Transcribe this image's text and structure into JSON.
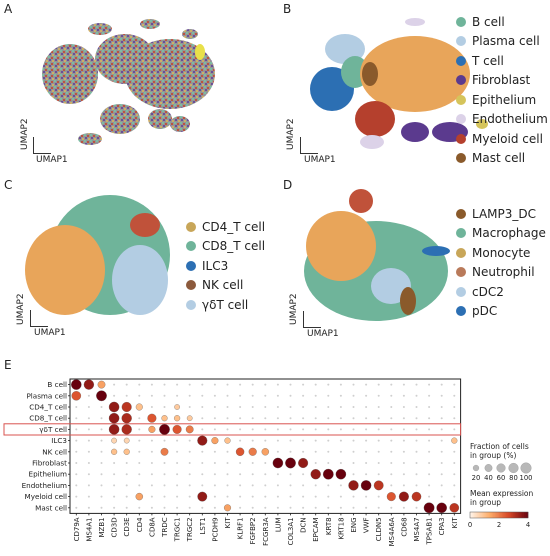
{
  "panels": {
    "A": {
      "letter": "A",
      "xlabel": "UMAP1",
      "ylabel": "UMAP2"
    },
    "B": {
      "letter": "B",
      "xlabel": "UMAP1",
      "ylabel": "UMAP2",
      "legend": [
        {
          "label": "B cell",
          "color": "#6fb49a"
        },
        {
          "label": "Plasma cell",
          "color": "#b3cde3"
        },
        {
          "label": "T cell",
          "color": "#2c6fb3"
        },
        {
          "label": "Fibroblast",
          "color": "#5b3a8e"
        },
        {
          "label": "Epithelium",
          "color": "#d5c45b"
        },
        {
          "label": "Endothelium",
          "color": "#dcd2e8"
        },
        {
          "label": "Myeloid cell",
          "color": "#b5402d"
        },
        {
          "label": "Mast cell",
          "color": "#8a5a2b"
        }
      ]
    },
    "C": {
      "letter": "C",
      "xlabel": "UMAP1",
      "ylabel": "UMAP2",
      "legend": [
        {
          "label": "CD4_T cell",
          "color": "#c8a659"
        },
        {
          "label": "CD8_T cell",
          "color": "#6fb49a"
        },
        {
          "label": "ILC3",
          "color": "#2c6fb3"
        },
        {
          "label": "NK cell",
          "color": "#8c5a3c"
        },
        {
          "label": "γδT cell",
          "color": "#b3cde3"
        }
      ]
    },
    "D": {
      "letter": "D",
      "xlabel": "UMAP1",
      "ylabel": "UMAP2",
      "legend": [
        {
          "label": "LAMP3_DC",
          "color": "#8a5a2b"
        },
        {
          "label": "Macrophage",
          "color": "#6fb49a"
        },
        {
          "label": "Monocyte",
          "color": "#c8a659"
        },
        {
          "label": "Neutrophil",
          "color": "#b97a5a"
        },
        {
          "label": "cDC2",
          "color": "#b3cde3"
        },
        {
          "label": "pDC",
          "color": "#2c6fb3"
        }
      ]
    },
    "E": {
      "letter": "E"
    }
  },
  "chart_data": {
    "type": "dotplot",
    "rows": [
      "B cell",
      "Plasma cell",
      "CD4_T cell",
      "CD8_T cell",
      "γδT cell",
      "ILC3",
      "NK cell",
      "Fibroblast",
      "Epithelium",
      "Endothelium",
      "Myeloid cell",
      "Mast cell"
    ],
    "columns": [
      "CD79A",
      "MS4A1",
      "MZB1",
      "CD3D",
      "CD3E",
      "CD4",
      "CD8A",
      "TRDC",
      "TRGC1",
      "TRGC2",
      "LST1",
      "PCDH9",
      "KIT",
      "KLRF1",
      "FGFBP2",
      "FCGR3A",
      "LUM",
      "COL3A1",
      "DCN",
      "EPCAM",
      "KRT8",
      "KRT18",
      "ENG",
      "VWF",
      "CLDN5",
      "MS4A6A",
      "CD68",
      "MS4A7",
      "TPSAB1",
      "CPA3",
      "KIT"
    ],
    "highlighted_row": "γδT cell",
    "cells": [
      {
        "r": 0,
        "c": 0,
        "f": 90,
        "e": 4
      },
      {
        "r": 0,
        "c": 1,
        "f": 85,
        "e": 3.5
      },
      {
        "r": 0,
        "c": 2,
        "f": 40,
        "e": 1.5
      },
      {
        "r": 1,
        "c": 0,
        "f": 70,
        "e": 2.5
      },
      {
        "r": 1,
        "c": 2,
        "f": 95,
        "e": 4
      },
      {
        "r": 2,
        "c": 3,
        "f": 90,
        "e": 3.5
      },
      {
        "r": 2,
        "c": 4,
        "f": 80,
        "e": 3
      },
      {
        "r": 2,
        "c": 5,
        "f": 30,
        "e": 1
      },
      {
        "r": 2,
        "c": 8,
        "f": 15,
        "e": 0.8
      },
      {
        "r": 3,
        "c": 3,
        "f": 90,
        "e": 3.5
      },
      {
        "r": 3,
        "c": 4,
        "f": 85,
        "e": 3.2
      },
      {
        "r": 3,
        "c": 6,
        "f": 60,
        "e": 2.5
      },
      {
        "r": 3,
        "c": 7,
        "f": 20,
        "e": 1
      },
      {
        "r": 3,
        "c": 8,
        "f": 20,
        "e": 1
      },
      {
        "r": 3,
        "c": 9,
        "f": 15,
        "e": 0.8
      },
      {
        "r": 4,
        "c": 3,
        "f": 90,
        "e": 3.5
      },
      {
        "r": 4,
        "c": 4,
        "f": 85,
        "e": 3.2
      },
      {
        "r": 4,
        "c": 6,
        "f": 30,
        "e": 1.5
      },
      {
        "r": 4,
        "c": 7,
        "f": 95,
        "e": 4
      },
      {
        "r": 4,
        "c": 8,
        "f": 60,
        "e": 2.5
      },
      {
        "r": 4,
        "c": 9,
        "f": 40,
        "e": 2
      },
      {
        "r": 5,
        "c": 3,
        "f": 15,
        "e": 0.6
      },
      {
        "r": 5,
        "c": 4,
        "f": 15,
        "e": 0.6
      },
      {
        "r": 5,
        "c": 10,
        "f": 80,
        "e": 3.5
      },
      {
        "r": 5,
        "c": 11,
        "f": 30,
        "e": 1.5
      },
      {
        "r": 5,
        "c": 12,
        "f": 20,
        "e": 1
      },
      {
        "r": 5,
        "c": 30,
        "f": 20,
        "e": 1
      },
      {
        "r": 6,
        "c": 3,
        "f": 20,
        "e": 1
      },
      {
        "r": 6,
        "c": 4,
        "f": 20,
        "e": 1
      },
      {
        "r": 6,
        "c": 7,
        "f": 40,
        "e": 2
      },
      {
        "r": 6,
        "c": 13,
        "f": 50,
        "e": 2.5
      },
      {
        "r": 6,
        "c": 14,
        "f": 45,
        "e": 2
      },
      {
        "r": 6,
        "c": 15,
        "f": 35,
        "e": 1.5
      },
      {
        "r": 7,
        "c": 16,
        "f": 90,
        "e": 4
      },
      {
        "r": 7,
        "c": 17,
        "f": 95,
        "e": 4
      },
      {
        "r": 7,
        "c": 18,
        "f": 80,
        "e": 3.5
      },
      {
        "r": 8,
        "c": 19,
        "f": 85,
        "e": 3.5
      },
      {
        "r": 8,
        "c": 20,
        "f": 95,
        "e": 4
      },
      {
        "r": 8,
        "c": 21,
        "f": 90,
        "e": 4
      },
      {
        "r": 9,
        "c": 22,
        "f": 85,
        "e": 3.5
      },
      {
        "r": 9,
        "c": 23,
        "f": 90,
        "e": 4
      },
      {
        "r": 9,
        "c": 24,
        "f": 75,
        "e": 3
      },
      {
        "r": 10,
        "c": 5,
        "f": 35,
        "e": 1.5
      },
      {
        "r": 10,
        "c": 10,
        "f": 75,
        "e": 3.5
      },
      {
        "r": 10,
        "c": 25,
        "f": 60,
        "e": 2.5
      },
      {
        "r": 10,
        "c": 26,
        "f": 80,
        "e": 3.5
      },
      {
        "r": 10,
        "c": 27,
        "f": 70,
        "e": 3
      },
      {
        "r": 11,
        "c": 12,
        "f": 30,
        "e": 1.5
      },
      {
        "r": 11,
        "c": 28,
        "f": 95,
        "e": 4
      },
      {
        "r": 11,
        "c": 29,
        "f": 90,
        "e": 4
      },
      {
        "r": 11,
        "c": 30,
        "f": 70,
        "e": 3
      }
    ],
    "size_legend": {
      "title": [
        "Fraction of cells",
        "in group (%)"
      ],
      "ticks": [
        "20",
        "40",
        "60",
        "80",
        "100"
      ],
      "tick_values": [
        20,
        40,
        60,
        80,
        100
      ]
    },
    "color_legend": {
      "title": [
        "Mean expression",
        "in group"
      ],
      "ticks": [
        "0",
        "2",
        "4"
      ],
      "tick_values": [
        0,
        2,
        4
      ],
      "range": [
        0,
        4
      ]
    }
  }
}
